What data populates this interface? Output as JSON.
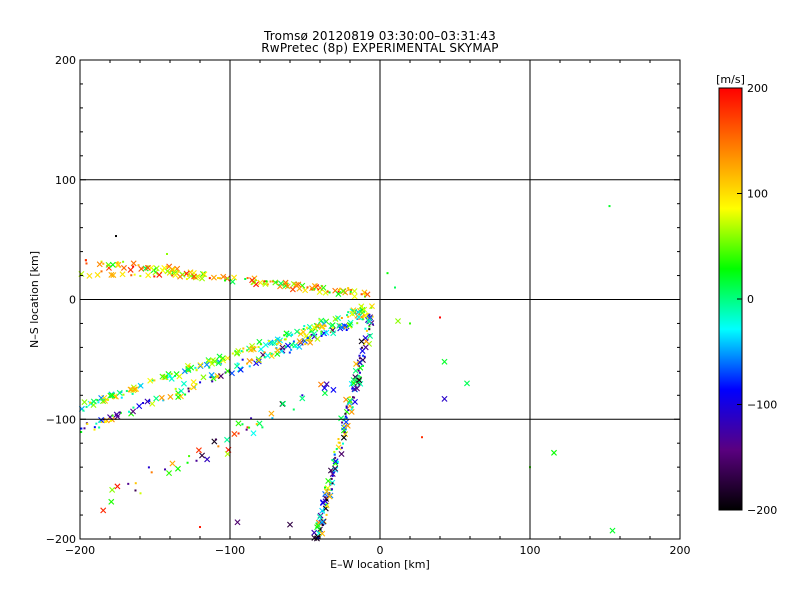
{
  "chart_data": {
    "type": "scatter",
    "title": "Tromsø 20120819 03:30:00–03:31:43",
    "subtitle": "RwPretec (8p) EXPERIMENTAL SKYMAP",
    "xlabel": "E–W location [km]",
    "ylabel": "N–S location [km]",
    "xlim": [
      -200,
      200
    ],
    "ylim": [
      -200,
      200
    ],
    "x_ticks": [
      -200,
      -100,
      0,
      100,
      200
    ],
    "y_ticks": [
      -200,
      -100,
      0,
      100,
      200
    ],
    "x_tick_labels": [
      "−200",
      "−100",
      "0",
      "100",
      "200"
    ],
    "y_tick_labels": [
      "−200",
      "−100",
      "0",
      "100",
      "200"
    ],
    "grid": true,
    "markers": [
      "x",
      "dot"
    ],
    "colorbar": {
      "label": "[m/s]",
      "range": [
        -200,
        200
      ],
      "ticks": [
        200,
        100,
        0,
        -100,
        -200
      ],
      "tick_labels": [
        "200",
        "100",
        "0",
        "−100",
        "−200"
      ],
      "colors": [
        "#000000",
        "#5a0080",
        "#0000ff",
        "#00ffff",
        "#00ff00",
        "#ffff00",
        "#ff8000",
        "#ff0000"
      ],
      "position": "right"
    },
    "clusters": [
      {
        "name_hint": "upper band",
        "from": [
          -198,
          32
        ],
        "to": [
          -5,
          4
        ],
        "count": 130,
        "spread": 5,
        "velocity_range": [
          10,
          200
        ]
      },
      {
        "name_hint": "upper-middle band",
        "from": [
          -200,
          -90
        ],
        "to": [
          -5,
          -6
        ],
        "count": 170,
        "spread": 5,
        "velocity_range": [
          -60,
          130
        ]
      },
      {
        "name_hint": "lower band",
        "from": [
          -200,
          -110
        ],
        "to": [
          -5,
          -12
        ],
        "count": 150,
        "spread": 6,
        "velocity_range": [
          -160,
          140
        ]
      },
      {
        "name_hint": "lower fan",
        "from": [
          -190,
          -175
        ],
        "to": [
          -30,
          -70
        ],
        "count": 50,
        "spread": 14,
        "velocity_range": [
          -200,
          200
        ]
      },
      {
        "name_hint": "vertical column",
        "from": [
          -42,
          -200
        ],
        "to": [
          -5,
          -10
        ],
        "count": 170,
        "spread": 4,
        "velocity_range": [
          -200,
          140
        ]
      },
      {
        "name_hint": "upper-left row",
        "from": [
          -200,
          22
        ],
        "to": [
          -110,
          18
        ],
        "count": 25,
        "spread": 3,
        "velocity_range": [
          60,
          200
        ]
      }
    ],
    "isolated_points": [
      {
        "x": 153,
        "y": 78,
        "v": 20,
        "m": "dot"
      },
      {
        "x": 155,
        "y": -193,
        "v": 20,
        "m": "x"
      },
      {
        "x": 116,
        "y": -128,
        "v": 30,
        "m": "x"
      },
      {
        "x": 100,
        "y": -140,
        "v": 40,
        "m": "dot"
      },
      {
        "x": 58,
        "y": -70,
        "v": 10,
        "m": "x"
      },
      {
        "x": 43,
        "y": -52,
        "v": 20,
        "m": "x"
      },
      {
        "x": 43,
        "y": -83,
        "v": -110,
        "m": "x"
      },
      {
        "x": 40,
        "y": -15,
        "v": 200,
        "m": "dot"
      },
      {
        "x": 20,
        "y": -20,
        "v": 40,
        "m": "dot"
      },
      {
        "x": 12,
        "y": -18,
        "v": 60,
        "m": "x"
      },
      {
        "x": 28,
        "y": -115,
        "v": 180,
        "m": "dot"
      },
      {
        "x": 10,
        "y": 10,
        "v": 10,
        "m": "dot"
      },
      {
        "x": 5,
        "y": 22,
        "v": 30,
        "m": "dot"
      },
      {
        "x": -176,
        "y": 53,
        "v": -200,
        "m": "dot"
      },
      {
        "x": -142,
        "y": 38,
        "v": 60,
        "m": "dot"
      },
      {
        "x": -120,
        "y": -190,
        "v": 190,
        "m": "dot"
      },
      {
        "x": -95,
        "y": -186,
        "v": -150,
        "m": "x"
      },
      {
        "x": -60,
        "y": -188,
        "v": -170,
        "m": "x"
      }
    ]
  }
}
